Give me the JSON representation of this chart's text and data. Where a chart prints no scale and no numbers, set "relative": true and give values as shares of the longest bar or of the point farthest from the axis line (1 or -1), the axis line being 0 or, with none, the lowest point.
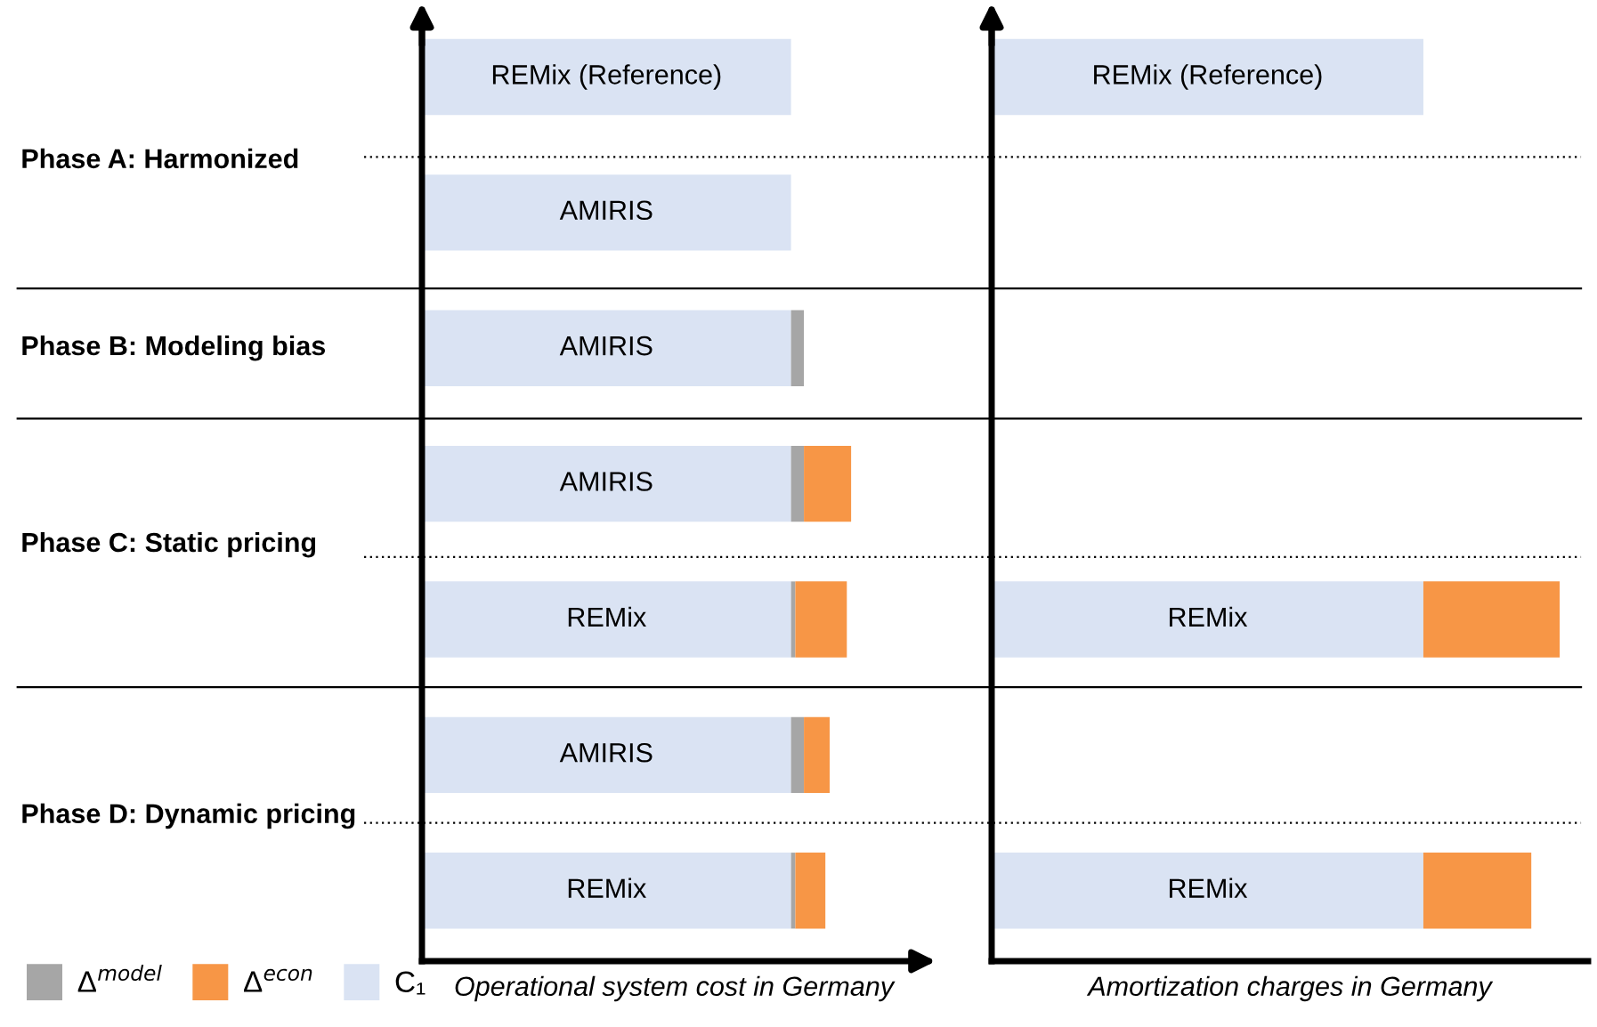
{
  "chart_data": [
    {
      "type": "bar",
      "orientation": "horizontal",
      "stacked": true,
      "relative": true,
      "legend": "bottom left",
      "xlabel": "Operational system cost in Germany",
      "categories": [
        "REMix (Reference)",
        "AMIRIS",
        "AMIRIS",
        "AMIRIS",
        "REMix",
        "AMIRIS",
        "REMix"
      ],
      "series": [
        {
          "name": "C₁",
          "color": "#dae3f3",
          "values": [
            0.86,
            0.86,
            0.86,
            0.86,
            0.86,
            0.86,
            0.86
          ]
        },
        {
          "name": "Δ$^{model}$",
          "color": "#a6a6a6",
          "values": [
            null,
            null,
            0.03,
            0.03,
            0.01,
            0.03,
            0.01
          ]
        },
        {
          "name": "Δ$^{econ}$",
          "color": "#f79646",
          "values": [
            null,
            null,
            null,
            0.11,
            0.12,
            0.06,
            0.07
          ]
        }
      ],
      "annotations": [
        "Phase A: Harmonized",
        "Phase B: Modeling bias",
        "Phase C: Static pricing",
        "Phase D: Dynamic pricing"
      ]
    },
    {
      "type": "bar",
      "orientation": "horizontal",
      "stacked": true,
      "relative": true,
      "xlabel": "Amortization charges in Germany",
      "categories": [
        "REMix (Reference)",
        null,
        null,
        null,
        "REMix",
        null,
        "REMix"
      ],
      "series": [
        {
          "color": "#dae3f3",
          "values": [
            0.76,
            null,
            null,
            null,
            0.76,
            null,
            0.76
          ]
        },
        {
          "color": "#f79646",
          "values": [
            null,
            null,
            null,
            null,
            0.24,
            null,
            0.19
          ]
        }
      ]
    }
  ]
}
